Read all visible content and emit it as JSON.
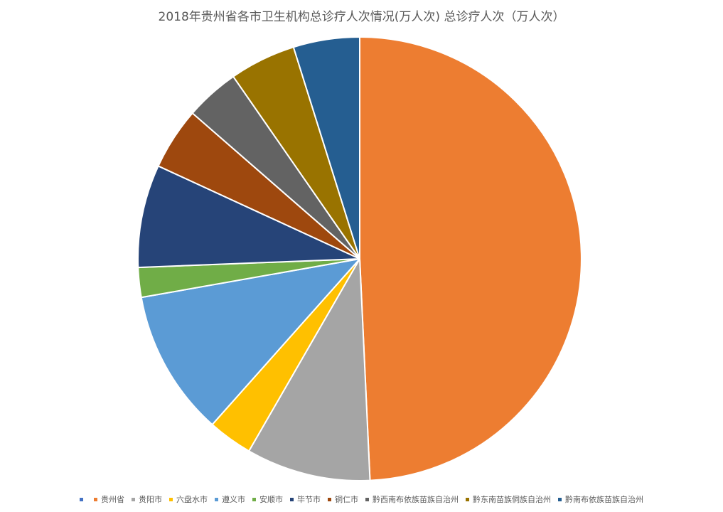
{
  "chart_data": {
    "type": "pie",
    "title": "2018年贵州省各市卫生机构总诊疗人次情况(万人次)  总诊疗人次（万人次）",
    "categories": [
      "",
      "贵州省",
      "贵阳市",
      "六盘水市",
      "遵义市",
      "安顺市",
      "毕节市",
      "铜仁市",
      "黔西南布依族苗族自治州",
      "黔东南苗族侗族自治州",
      "黔南布依族苗族自治州"
    ],
    "values": [
      0,
      50.0,
      9.2,
      3.3,
      10.8,
      2.2,
      7.6,
      4.6,
      4.0,
      4.9,
      4.9
    ],
    "colors": [
      "#4472C4",
      "#ED7D31",
      "#A5A5A5",
      "#FFC000",
      "#5B9BD5",
      "#70AD47",
      "#264478",
      "#9E480E",
      "#636363",
      "#997300",
      "#255E91"
    ],
    "legend_position": "bottom",
    "start_angle_deg": 0,
    "direction": "clockwise"
  }
}
